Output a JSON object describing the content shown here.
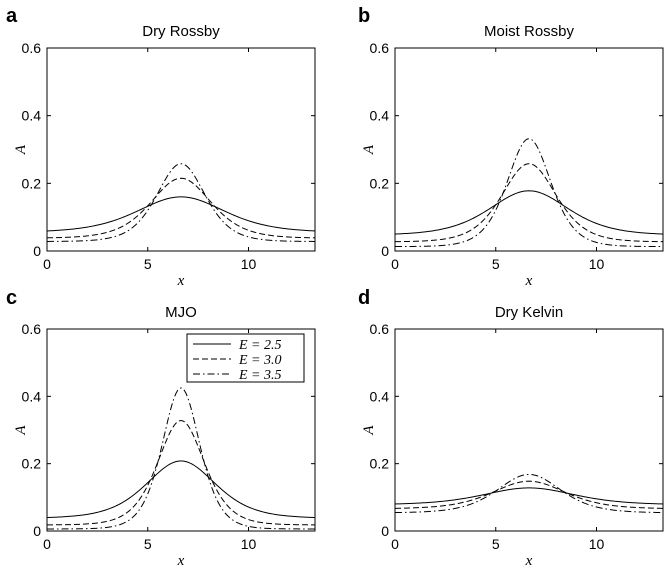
{
  "chart_data": [
    {
      "type": "line",
      "letter": "a",
      "title": "Dry Rossby",
      "xlabel": "x",
      "ylabel": "A",
      "xlim": [
        0,
        13.3
      ],
      "ylim": [
        0,
        0.6
      ],
      "xticks": [
        "0",
        "5",
        "10"
      ],
      "yticks": [
        "0",
        "0.2",
        "0.4",
        "0.6"
      ],
      "series": [
        {
          "name": "E = 2.5",
          "dash": "solid",
          "baseline": 0.055,
          "peak": 0.16,
          "center": 6.65,
          "width": 2.9
        },
        {
          "name": "E = 3.0",
          "dash": "dashed",
          "baseline": 0.038,
          "peak": 0.215,
          "center": 6.65,
          "width": 2.0
        },
        {
          "name": "E = 3.5",
          "dash": "dashdot",
          "baseline": 0.028,
          "peak": 0.258,
          "center": 6.65,
          "width": 1.6
        }
      ]
    },
    {
      "type": "line",
      "letter": "b",
      "title": "Moist Rossby",
      "xlabel": "x",
      "ylabel": "A",
      "xlim": [
        0,
        13.3
      ],
      "ylim": [
        0,
        0.6
      ],
      "xticks": [
        "0",
        "5",
        "10"
      ],
      "yticks": [
        "0",
        "0.2",
        "0.4",
        "0.6"
      ],
      "series": [
        {
          "name": "E = 2.5",
          "dash": "solid",
          "baseline": 0.047,
          "peak": 0.178,
          "center": 6.65,
          "width": 2.6
        },
        {
          "name": "E = 3.0",
          "dash": "dashed",
          "baseline": 0.027,
          "peak": 0.258,
          "center": 6.65,
          "width": 1.8
        },
        {
          "name": "E = 3.5",
          "dash": "dashdot",
          "baseline": 0.013,
          "peak": 0.332,
          "center": 6.65,
          "width": 1.45
        }
      ]
    },
    {
      "type": "line",
      "letter": "c",
      "title": "MJO",
      "xlabel": "x",
      "ylabel": "A",
      "xlim": [
        0,
        13.3
      ],
      "ylim": [
        0,
        0.6
      ],
      "xticks": [
        "0",
        "5",
        "10"
      ],
      "yticks": [
        "0",
        "0.2",
        "0.4",
        "0.6"
      ],
      "legend": [
        "E = 2.5",
        "E = 3.0",
        "E = 3.5"
      ],
      "series": [
        {
          "name": "E = 2.5",
          "dash": "solid",
          "baseline": 0.038,
          "peak": 0.208,
          "center": 6.65,
          "width": 2.3
        },
        {
          "name": "E = 3.0",
          "dash": "dashed",
          "baseline": 0.018,
          "peak": 0.328,
          "center": 6.65,
          "width": 1.55
        },
        {
          "name": "E = 3.5",
          "dash": "dashdot",
          "baseline": 0.006,
          "peak": 0.425,
          "center": 6.65,
          "width": 1.25
        }
      ]
    },
    {
      "type": "line",
      "letter": "d",
      "title": "Dry Kelvin",
      "xlabel": "x",
      "ylabel": "A",
      "xlim": [
        0,
        13.3
      ],
      "ylim": [
        0,
        0.6
      ],
      "xticks": [
        "0",
        "5",
        "10"
      ],
      "yticks": [
        "0",
        "0.2",
        "0.4",
        "0.6"
      ],
      "series": [
        {
          "name": "E = 2.5",
          "dash": "solid",
          "baseline": 0.078,
          "peak": 0.128,
          "center": 6.65,
          "width": 3.0
        },
        {
          "name": "E = 3.0",
          "dash": "dashed",
          "baseline": 0.066,
          "peak": 0.148,
          "center": 6.65,
          "width": 2.4
        },
        {
          "name": "E = 3.5",
          "dash": "dashdot",
          "baseline": 0.054,
          "peak": 0.168,
          "center": 6.65,
          "width": 2.1
        }
      ]
    }
  ]
}
